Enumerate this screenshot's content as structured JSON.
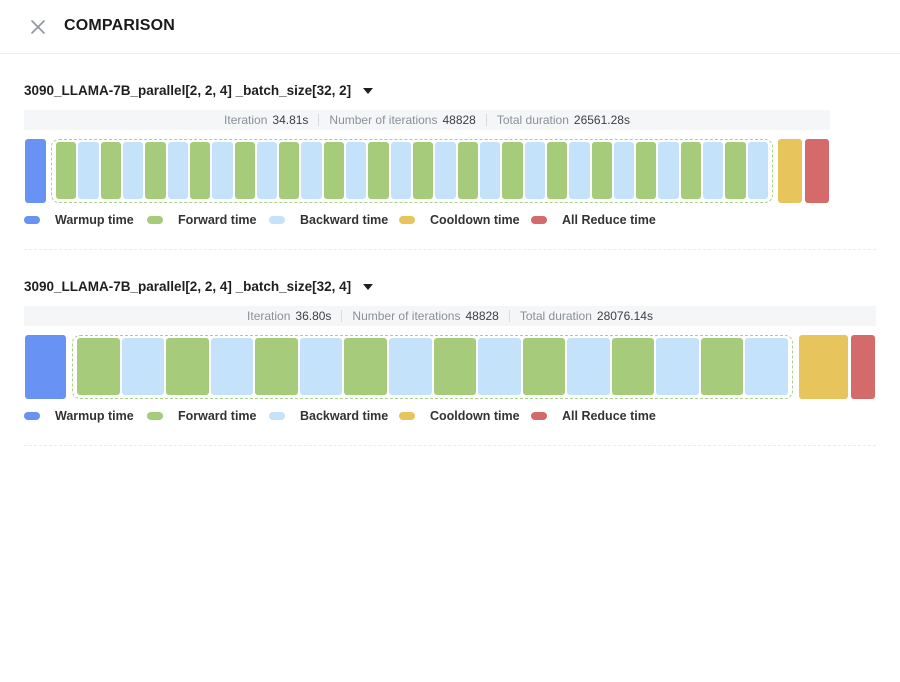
{
  "header": {
    "title": "COMPARISON"
  },
  "comparisons": [
    {
      "title": "3090_LLAMA-7B_parallel[2, 2, 4] _batch_size[32, 2]",
      "stats": {
        "iteration_label": "Iteration",
        "iteration_value": "34.81s",
        "iterations_label": "Number of iterations",
        "iterations_value": "48828",
        "duration_label": "Total duration",
        "duration_value": "26561.28s"
      },
      "timeline": {
        "forward_backward_pairs": 16
      }
    },
    {
      "title": "3090_LLAMA-7B_parallel[2, 2, 4] _batch_size[32, 4]",
      "stats": {
        "iteration_label": "Iteration",
        "iteration_value": "36.80s",
        "iterations_label": "Number of iterations",
        "iterations_value": "48828",
        "duration_label": "Total duration",
        "duration_value": "28076.14s"
      },
      "timeline": {
        "forward_backward_pairs": 8
      }
    }
  ],
  "legend": {
    "warmup": "Warmup time",
    "forward": "Forward time",
    "backward": "Backward time",
    "cooldown": "Cooldown time",
    "reduce": "All Reduce time"
  },
  "colors": {
    "warmup": "#6893f5",
    "forward": "#a5cb7b",
    "backward": "#c4e3fb",
    "cooldown": "#e8c45d",
    "reduce": "#d46a6a"
  }
}
